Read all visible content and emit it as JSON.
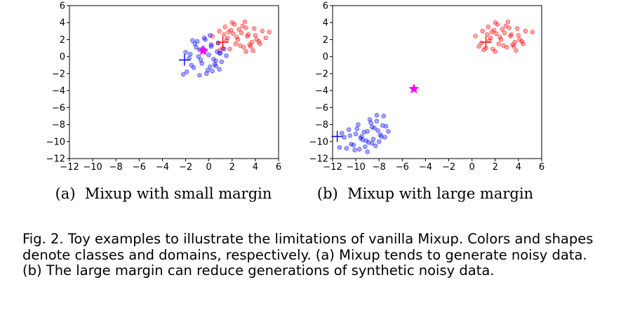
{
  "chart_data": [
    {
      "type": "scatter",
      "subcaption": "(a)  Mixup with small margin",
      "xlim": [
        -12,
        6
      ],
      "ylim": [
        -12,
        6
      ],
      "xticks": [
        "−12",
        "−10",
        "−8",
        "−6",
        "−4",
        "−2",
        "0",
        "2",
        "4",
        "6"
      ],
      "yticks": [
        "−12",
        "−10",
        "−8",
        "−6",
        "−4",
        "−2",
        "0",
        "2",
        "4",
        "6"
      ],
      "series": [
        {
          "class": "red",
          "color": "#ff0000",
          "x": [
            1.2,
            1.6,
            1.9,
            2.3,
            2.8,
            3.2,
            3.6,
            4.0,
            4.6,
            5.2,
            0.3,
            0.8,
            1.4,
            2.0,
            2.5,
            3.0,
            3.4,
            3.9,
            4.3,
            4.9,
            1.0,
            1.7,
            2.2,
            2.7,
            3.3,
            3.8,
            1.5,
            2.1,
            2.9,
            3.5,
            4.1,
            0.9,
            1.8,
            2.4,
            3.1,
            3.7,
            2.6,
            3.2,
            4.4,
            1.3
          ],
          "y": [
            1.0,
            2.2,
            3.1,
            1.5,
            2.8,
            3.4,
            1.2,
            2.5,
            3.0,
            2.9,
            2.4,
            1.6,
            3.5,
            4.0,
            2.0,
            1.1,
            2.6,
            3.3,
            1.8,
            2.2,
            0.8,
            2.9,
            3.8,
            1.3,
            2.4,
            0.7,
            1.9,
            2.7,
            3.6,
            1.4,
            2.0,
            3.0,
            0.9,
            2.3,
            4.1,
            1.7,
            3.2,
            0.6,
            1.5,
            2.6
          ],
          "cross": [
            1.2,
            1.7
          ]
        },
        {
          "class": "blue",
          "color": "#0000ff",
          "x": [
            -1.2,
            -0.8,
            -0.3,
            0.2,
            0.6,
            1.0,
            -1.5,
            -0.6,
            0.1,
            0.9,
            -2.0,
            -1.0,
            0.4,
            1.3,
            -0.2,
            -1.7,
            -0.9,
            0.3,
            0.8,
            -0.5,
            -1.3,
            0.0,
            0.5,
            1.1,
            -2.2,
            -1.1,
            -0.4,
            0.7,
            -1.6,
            -0.1,
            0.2,
            -0.7,
            1.5,
            -1.9,
            -0.3,
            0.6,
            -1.4,
            0.9,
            -0.8,
            0.1
          ],
          "y": [
            1.5,
            0.8,
            2.0,
            1.2,
            -0.5,
            0.4,
            -1.0,
            -0.8,
            -1.2,
            -1.5,
            0.5,
            1.8,
            -0.3,
            0.9,
            -2.0,
            -0.2,
            0.0,
            -1.7,
            1.6,
            1.0,
            -1.3,
            0.2,
            -0.9,
            -0.6,
            -2.1,
            1.1,
            2.2,
            0.6,
            0.3,
            -1.6,
            1.4,
            -0.4,
            0.1,
            -1.8,
            0.7,
            -1.1,
            1.9,
            0.4,
            -2.2,
            2.5
          ],
          "cross": [
            -2.1,
            -0.4
          ]
        }
      ],
      "star": {
        "x": -0.5,
        "y": 0.7,
        "color": "#ff00ff"
      }
    },
    {
      "type": "scatter",
      "subcaption": "(b)  Mixup with large margin",
      "xlim": [
        -12,
        6
      ],
      "ylim": [
        -12,
        6
      ],
      "xticks": [
        "−12",
        "−10",
        "−8",
        "−6",
        "−4",
        "−2",
        "0",
        "2",
        "4",
        "6"
      ],
      "yticks": [
        "−12",
        "−10",
        "−8",
        "−6",
        "−4",
        "−2",
        "0",
        "2",
        "4",
        "6"
      ],
      "series": [
        {
          "class": "red",
          "color": "#ff0000",
          "x": [
            0.3,
            0.8,
            1.2,
            1.6,
            1.9,
            2.3,
            2.8,
            3.2,
            3.6,
            4.0,
            4.6,
            5.2,
            1.4,
            2.0,
            2.5,
            3.0,
            3.4,
            3.9,
            4.3,
            1.0,
            1.7,
            2.2,
            2.7,
            3.3,
            3.8,
            1.5,
            2.1,
            2.9,
            3.5,
            4.1,
            0.9,
            1.8,
            2.4,
            3.1,
            3.7,
            2.6,
            4.4,
            1.3,
            0.6,
            2.0
          ],
          "y": [
            2.4,
            1.6,
            1.0,
            2.2,
            3.1,
            1.5,
            2.8,
            3.4,
            1.2,
            2.5,
            3.0,
            2.9,
            3.5,
            4.0,
            2.0,
            1.1,
            2.6,
            3.3,
            1.8,
            0.8,
            2.9,
            3.8,
            1.3,
            2.4,
            0.7,
            1.9,
            2.7,
            3.6,
            1.4,
            2.0,
            3.0,
            0.9,
            2.3,
            4.1,
            1.7,
            3.2,
            1.5,
            2.6,
            1.2,
            0.6
          ],
          "cross": [
            1.2,
            1.7
          ]
        },
        {
          "class": "blue",
          "color": "#0000ff",
          "x": [
            -11.0,
            -10.6,
            -10.2,
            -9.8,
            -9.4,
            -9.0,
            -8.6,
            -8.2,
            -7.8,
            -7.4,
            -10.8,
            -10.0,
            -9.2,
            -8.4,
            -7.6,
            -11.2,
            -9.6,
            -8.8,
            -8.0,
            -7.2,
            -10.4,
            -9.9,
            -9.1,
            -8.7,
            -8.3,
            -7.9,
            -10.1,
            -9.5,
            -8.9,
            -8.1,
            -11.4,
            -9.3,
            -8.5,
            -7.7,
            -10.5,
            -9.7,
            -8.6,
            -7.5,
            -9.0,
            -8.2
          ],
          "y": [
            -9.5,
            -8.6,
            -10.4,
            -8.0,
            -9.8,
            -8.8,
            -10.2,
            -7.6,
            -9.4,
            -8.2,
            -10.8,
            -9.1,
            -10.6,
            -8.4,
            -7.0,
            -9.0,
            -9.6,
            -7.4,
            -10.0,
            -8.8,
            -10.3,
            -8.5,
            -9.9,
            -7.8,
            -10.5,
            -9.2,
            -11.0,
            -9.4,
            -10.1,
            -8.7,
            -10.7,
            -8.9,
            -9.7,
            -8.1,
            -9.3,
            -10.9,
            -8.3,
            -9.5,
            -11.2,
            -6.9
          ],
          "cross": [
            -11.6,
            -9.4
          ]
        }
      ],
      "star": {
        "x": -5.0,
        "y": -3.8,
        "color": "#ff00ff"
      }
    }
  ],
  "figure_caption": "Fig. 2. Toy examples to illustrate the limitations of vanilla Mixup. Colors and shapes denote classes and domains, respectively. (a) Mixup tends to generate noisy data. (b) The large margin can reduce generations of synthetic noisy data."
}
